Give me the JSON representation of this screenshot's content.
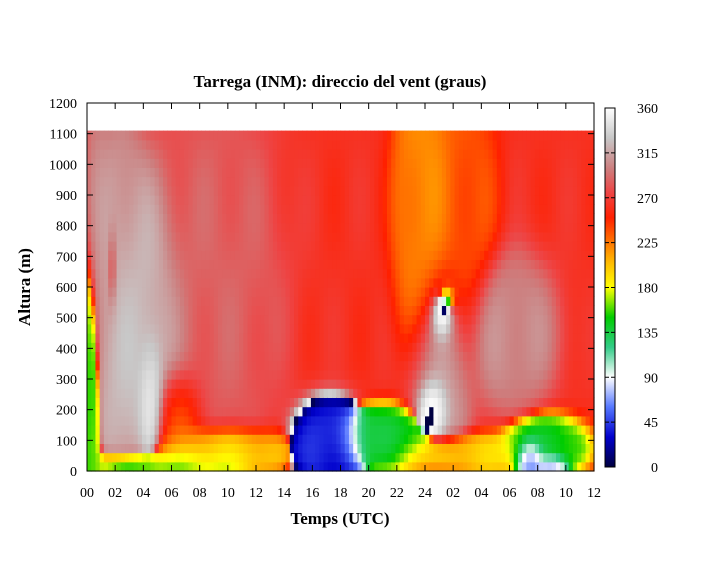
{
  "chart_data": {
    "type": "heatmap",
    "title": "Tarrega (INM): direccio del vent (graus)",
    "xlabel": "Temps (UTC)",
    "ylabel": "Altura (m)",
    "x_tick_labels": [
      "00",
      "02",
      "04",
      "06",
      "08",
      "10",
      "12",
      "14",
      "16",
      "18",
      "20",
      "22",
      "24",
      "02",
      "04",
      "06",
      "08",
      "10",
      "12"
    ],
    "x_range_hours": [
      0,
      36
    ],
    "y_ticks": [
      0,
      100,
      200,
      300,
      400,
      500,
      600,
      700,
      800,
      900,
      1000,
      1100,
      1200
    ],
    "ylim": [
      0,
      1200
    ],
    "data_top_altitude": 1110,
    "colorbar": {
      "ticks": [
        0,
        45,
        90,
        135,
        180,
        225,
        270,
        315,
        360
      ],
      "range": [
        0,
        360
      ],
      "stops": [
        {
          "v": 0,
          "color": "#000040"
        },
        {
          "v": 30,
          "color": "#0000cc"
        },
        {
          "v": 60,
          "color": "#5577ff"
        },
        {
          "v": 90,
          "color": "#ffffff"
        },
        {
          "v": 120,
          "color": "#33cc88"
        },
        {
          "v": 150,
          "color": "#00cc00"
        },
        {
          "v": 180,
          "color": "#ffff00"
        },
        {
          "v": 205,
          "color": "#ffbb00"
        },
        {
          "v": 225,
          "color": "#ff7700"
        },
        {
          "v": 250,
          "color": "#ff2000"
        },
        {
          "v": 275,
          "color": "#ee4444"
        },
        {
          "v": 300,
          "color": "#cc8080"
        },
        {
          "v": 330,
          "color": "#c8c8c8"
        },
        {
          "v": 360,
          "color": "#ffffff"
        }
      ]
    },
    "base_direction": 262,
    "features": [
      {
        "name": "morning-veer-plume",
        "t": 3.5,
        "z": 420,
        "st": 1.6,
        "sz": 260,
        "dir": 330,
        "w": 0.95
      },
      {
        "name": "morning-upper-grey",
        "t": 2.2,
        "z": 720,
        "st": 0.9,
        "sz": 200,
        "dir": 315,
        "w": 0.7
      },
      {
        "name": "morning-core",
        "t": 4.5,
        "z": 250,
        "st": 0.45,
        "sz": 110,
        "dir": 5,
        "w": 1.0
      },
      {
        "name": "morning-upper-core",
        "t": 1.8,
        "z": 660,
        "st": 0.18,
        "sz": 80,
        "dir": 200,
        "w": 0.6
      },
      {
        "name": "low-level-green-left",
        "t": 0.3,
        "z": 300,
        "st": 0.35,
        "sz": 260,
        "dir": 150,
        "w": 0.9
      },
      {
        "name": "surface-green-band",
        "t": 5.5,
        "z": 20,
        "st": 3.0,
        "sz": 30,
        "dir": 150,
        "w": 0.8
      },
      {
        "name": "surface-yellow-band",
        "t": 9.0,
        "z": 70,
        "st": 2.5,
        "sz": 40,
        "dir": 185,
        "w": 0.7
      },
      {
        "name": "morning-orange-lobe",
        "t": 6.3,
        "z": 170,
        "st": 1.0,
        "sz": 90,
        "dir": 225,
        "w": 0.7
      },
      {
        "name": "midday-grey-dome",
        "t": 9.2,
        "z": 620,
        "st": 2.2,
        "sz": 300,
        "dir": 290,
        "w": 0.6
      },
      {
        "name": "early-grey-left",
        "t": 0.8,
        "z": 760,
        "st": 0.5,
        "sz": 260,
        "dir": 305,
        "w": 0.6
      },
      {
        "name": "afternoon-orange-column",
        "t": 24.0,
        "z": 900,
        "st": 1.0,
        "sz": 350,
        "dir": 215,
        "w": 0.8
      },
      {
        "name": "afternoon-orange-right",
        "t": 26.5,
        "z": 850,
        "st": 1.2,
        "sz": 260,
        "dir": 232,
        "w": 0.6
      },
      {
        "name": "blue-evening-patch",
        "t": 17.2,
        "z": 90,
        "st": 1.3,
        "sz": 70,
        "dir": 40,
        "w": 0.95
      },
      {
        "name": "green-evening-band",
        "t": 21.5,
        "z": 110,
        "st": 2.0,
        "sz": 50,
        "dir": 135,
        "w": 0.8
      },
      {
        "name": "grey-night-dome",
        "t": 25.0,
        "z": 330,
        "st": 1.1,
        "sz": 170,
        "dir": 320,
        "w": 0.9
      },
      {
        "name": "blue-night-core",
        "t": 24.6,
        "z": 210,
        "st": 0.55,
        "sz": 55,
        "dir": 30,
        "w": 1.0
      },
      {
        "name": "upper-blue-blob",
        "t": 25.2,
        "z": 510,
        "st": 0.45,
        "sz": 50,
        "dir": 25,
        "w": 1.0
      },
      {
        "name": "upper-green-blob",
        "t": 25.5,
        "z": 560,
        "st": 0.4,
        "sz": 30,
        "dir": 140,
        "w": 0.8
      },
      {
        "name": "grey-right-region",
        "t": 30.0,
        "z": 450,
        "st": 1.6,
        "sz": 120,
        "dir": 310,
        "w": 0.7
      },
      {
        "name": "yellow-night-band",
        "t": 26.0,
        "z": 55,
        "st": 2.2,
        "sz": 35,
        "dir": 190,
        "w": 0.7
      },
      {
        "name": "green-late-right",
        "t": 32.5,
        "z": 80,
        "st": 1.5,
        "sz": 50,
        "dir": 140,
        "w": 0.75
      },
      {
        "name": "blue-late-right",
        "t": 31.5,
        "z": 40,
        "st": 0.5,
        "sz": 35,
        "dir": 50,
        "w": 0.9
      },
      {
        "name": "blue-low-right",
        "t": 33.0,
        "z": 20,
        "st": 0.6,
        "sz": 20,
        "dir": 60,
        "w": 0.7
      }
    ]
  }
}
